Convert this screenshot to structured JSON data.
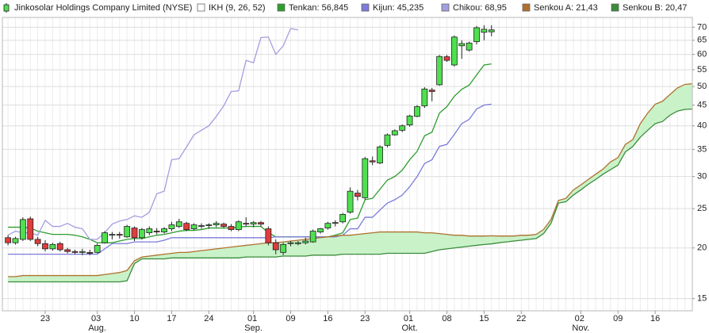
{
  "chart_data": {
    "type": "candlestick",
    "log_scale": true,
    "grid": true,
    "ylim": [
      14,
      74
    ],
    "yticks": [
      15,
      20,
      25,
      30,
      35,
      40,
      45,
      50,
      55,
      60,
      65,
      70
    ],
    "categories": [
      null,
      null,
      null,
      null,
      null,
      "23",
      null,
      null,
      null,
      null,
      null,
      null,
      "03 Aug.",
      null,
      null,
      null,
      null,
      "10",
      null,
      null,
      null,
      null,
      "17",
      null,
      null,
      null,
      null,
      "24",
      null,
      null,
      null,
      null,
      null,
      "01 Sep.",
      null,
      null,
      null,
      null,
      "09",
      null,
      null,
      null,
      null,
      "16",
      null,
      null,
      null,
      null,
      "23",
      null,
      null,
      null,
      null,
      null,
      "01 Okt.",
      null,
      null,
      null,
      null,
      "08",
      null,
      null,
      null,
      null,
      "15",
      null,
      null,
      null,
      null,
      "22",
      null,
      null,
      null,
      null,
      null,
      null,
      null,
      "02 Nov.",
      null,
      null,
      null,
      null,
      "09",
      null,
      null,
      null,
      null,
      "16",
      null,
      null,
      null,
      null,
      null
    ],
    "ohlc": {
      "name": "Jinkosolar Holdings Company Limited (NYSE)",
      "up_color": "#4fe04f",
      "down_color": "#e03c3c",
      "open": [
        21.2,
        20.6,
        21.0,
        23.6,
        21.0,
        20.5,
        19.9,
        20.5,
        19.8,
        19.6,
        19.5,
        19.5,
        19.5,
        20.6,
        21.5,
        21.6,
        21.3,
        22.4,
        21.2,
        21.8,
        22.0,
        21.9,
        22.3,
        22.6,
        23.0,
        22.3,
        22.6,
        22.7,
        22.8,
        22.9,
        22.6,
        22.2,
        23.0,
        22.9,
        23.1,
        22.3,
        20.6,
        19.5,
        20.5,
        20.5,
        20.6,
        20.7,
        21.9,
        22.4,
        23.0,
        23.2,
        24.5,
        27.3,
        26.6,
        32.8,
        32.4,
        35.8,
        38.0,
        39.0,
        40.2,
        42.2,
        44.8,
        49.0,
        50.5,
        59.2,
        56.5,
        63.0,
        61.5,
        64.5,
        68.0,
        68.2,
        null,
        null,
        null,
        null,
        null,
        null,
        null,
        null,
        null,
        null,
        null,
        null,
        null,
        null,
        null,
        null,
        null,
        null,
        null,
        null,
        null,
        null,
        null,
        null,
        null,
        null,
        null
      ],
      "high": [
        21.5,
        21.3,
        23.8,
        23.9,
        21.3,
        20.9,
        20.6,
        20.7,
        20.0,
        19.8,
        19.9,
        19.8,
        20.5,
        22.0,
        21.9,
        21.9,
        22.8,
        22.6,
        22.4,
        22.6,
        22.4,
        22.5,
        23.2,
        23.6,
        23.2,
        23.0,
        23.0,
        23.0,
        23.3,
        23.1,
        22.9,
        23.4,
        23.8,
        23.3,
        23.3,
        22.6,
        21.0,
        20.6,
        20.8,
        20.8,
        21.2,
        22.2,
        22.4,
        23.2,
        23.4,
        24.4,
        28.2,
        27.8,
        33.5,
        33.6,
        35.8,
        38.3,
        39.2,
        40.3,
        42.6,
        45.0,
        49.8,
        49.6,
        59.8,
        59.8,
        66.8,
        65.0,
        64.5,
        70.5,
        70.8,
        70.8,
        null,
        null,
        null,
        null,
        null,
        null,
        null,
        null,
        null,
        null,
        null,
        null,
        null,
        null,
        null,
        null,
        null,
        null,
        null,
        null,
        null,
        null,
        null,
        null,
        null,
        null,
        null
      ],
      "low": [
        20.3,
        20.4,
        20.8,
        20.8,
        20.2,
        19.6,
        19.7,
        19.6,
        19.4,
        19.3,
        19.2,
        19.2,
        19.4,
        20.5,
        21.0,
        21.1,
        21.2,
        20.8,
        21.0,
        21.5,
        21.6,
        21.7,
        22.0,
        22.4,
        22.0,
        22.1,
        22.3,
        22.3,
        22.5,
        22.4,
        22.0,
        22.0,
        22.6,
        22.5,
        22.6,
        20.3,
        19.3,
        19.2,
        20.2,
        20.3,
        20.4,
        20.6,
        21.7,
        22.2,
        22.6,
        23.0,
        24.3,
        26.2,
        26.3,
        32.0,
        32.2,
        35.4,
        37.8,
        38.6,
        39.8,
        42.0,
        44.3,
        46.0,
        50.2,
        57.5,
        56.0,
        58.5,
        61.0,
        63.5,
        65.0,
        66.5,
        null,
        null,
        null,
        null,
        null,
        null,
        null,
        null,
        null,
        null,
        null,
        null,
        null,
        null,
        null,
        null,
        null,
        null,
        null,
        null,
        null,
        null,
        null,
        null,
        null,
        null,
        null
      ],
      "close": [
        20.6,
        21.1,
        23.5,
        21.0,
        20.5,
        19.9,
        20.4,
        19.8,
        19.6,
        19.5,
        19.6,
        19.4,
        20.3,
        21.8,
        21.6,
        21.5,
        22.6,
        21.2,
        22.2,
        22.3,
        21.9,
        22.3,
        22.8,
        23.2,
        22.2,
        22.8,
        22.7,
        22.8,
        23.0,
        22.6,
        22.2,
        23.2,
        22.9,
        23.1,
        22.9,
        20.6,
        19.8,
        20.4,
        20.6,
        20.6,
        20.8,
        22.0,
        22.3,
        23.0,
        23.1,
        24.2,
        27.6,
        26.8,
        33.2,
        32.6,
        35.5,
        38.0,
        38.9,
        40.0,
        42.3,
        44.6,
        49.3,
        48.6,
        59.3,
        58.0,
        66.2,
        63.8,
        64.0,
        69.8,
        69.2,
        68.95,
        null,
        null,
        null,
        null,
        null,
        null,
        null,
        null,
        null,
        null,
        null,
        null,
        null,
        null,
        null,
        null,
        null,
        null,
        null,
        null,
        null,
        null,
        null,
        null,
        null,
        null,
        null
      ]
    },
    "indicator": "IKH (9, 26, 52)",
    "cloud_color": "#c9f2c9",
    "series": [
      {
        "name": "Tenkan: 56,845",
        "color": "#2e9e2e",
        "values": [
          22.5,
          22.5,
          22.5,
          22.4,
          22.0,
          21.8,
          21.6,
          21.6,
          21.6,
          21.5,
          21.3,
          21.0,
          20.6,
          20.6,
          20.6,
          20.8,
          21.0,
          21.1,
          21.1,
          21.3,
          21.5,
          21.6,
          21.8,
          22.0,
          22.1,
          22.1,
          22.2,
          22.4,
          22.4,
          22.4,
          22.4,
          22.5,
          22.6,
          22.6,
          22.6,
          21.8,
          21.3,
          21.3,
          21.3,
          21.3,
          21.3,
          21.3,
          21.3,
          21.3,
          21.5,
          21.8,
          23.5,
          23.7,
          26.3,
          26.5,
          27.9,
          29.4,
          30.0,
          31.1,
          33.0,
          34.6,
          37.8,
          38.6,
          43.0,
          44.6,
          47.3,
          49.2,
          50.4,
          53.4,
          56.5,
          56.845,
          null,
          null,
          null,
          null,
          null,
          null,
          null,
          null,
          null,
          null,
          null,
          null,
          null,
          null,
          null,
          null,
          null,
          null,
          null,
          null,
          null,
          null,
          null,
          null,
          null,
          null,
          null
        ]
      },
      {
        "name": "Kijun: 45,235",
        "color": "#7b7bdc",
        "values": [
          19.3,
          19.3,
          19.3,
          19.3,
          19.3,
          19.3,
          19.3,
          19.3,
          19.3,
          19.3,
          19.3,
          19.3,
          19.3,
          19.9,
          20.5,
          20.5,
          20.5,
          20.7,
          20.7,
          20.7,
          20.7,
          20.9,
          21.2,
          21.2,
          21.2,
          21.2,
          21.2,
          21.2,
          21.2,
          21.2,
          21.2,
          21.2,
          21.2,
          21.2,
          21.2,
          21.2,
          21.3,
          21.3,
          21.3,
          21.3,
          21.3,
          21.3,
          21.3,
          21.3,
          21.3,
          21.5,
          22.3,
          22.3,
          23.8,
          23.8,
          24.8,
          25.8,
          26.3,
          27.0,
          28.3,
          30.0,
          32.3,
          33.0,
          35.6,
          36.0,
          38.1,
          40.5,
          41.5,
          44.0,
          45.0,
          45.235,
          null,
          null,
          null,
          null,
          null,
          null,
          null,
          null,
          null,
          null,
          null,
          null,
          null,
          null,
          null,
          null,
          null,
          null,
          null,
          null,
          null,
          null,
          null,
          null,
          null,
          null,
          null
        ]
      },
      {
        "name": "Chikou: 68,95",
        "color": "#a39ee0",
        "values": [
          21.5,
          22.0,
          21.8,
          21.8,
          21.5,
          23.4,
          22.6,
          22.6,
          23.0,
          22.5,
          22.3,
          21.0,
          21.0,
          21.8,
          22.9,
          23.3,
          23.5,
          24.0,
          23.8,
          24.5,
          27.2,
          27.6,
          33.0,
          33.2,
          35.5,
          38.0,
          39.0,
          40.0,
          42.2,
          44.8,
          48.6,
          48.8,
          58.0,
          57.2,
          66.0,
          66.2,
          60.0,
          63.0,
          69.5,
          68.95,
          null,
          null,
          null,
          null,
          null,
          null,
          null,
          null,
          null,
          null,
          null,
          null,
          null,
          null,
          null,
          null,
          null,
          null,
          null,
          null,
          null,
          null,
          null,
          null,
          null,
          null,
          null,
          null,
          null,
          null,
          null,
          null,
          null,
          null,
          null,
          null,
          null,
          null,
          null,
          null,
          null,
          null,
          null,
          null,
          null,
          null,
          null,
          null,
          null,
          null,
          null,
          null,
          null
        ]
      },
      {
        "name": "Senkou A: 21,43",
        "color": "#b0702e",
        "values": [
          17.0,
          17.0,
          17.1,
          17.1,
          17.1,
          17.1,
          17.1,
          17.1,
          17.1,
          17.1,
          17.1,
          17.1,
          17.1,
          17.2,
          17.3,
          17.4,
          17.6,
          18.6,
          19.0,
          19.1,
          19.2,
          19.3,
          19.4,
          19.5,
          19.5,
          19.6,
          19.7,
          19.8,
          19.9,
          20.0,
          20.1,
          20.2,
          20.3,
          20.4,
          20.5,
          20.6,
          20.6,
          20.7,
          20.8,
          20.9,
          21.0,
          21.1,
          21.2,
          21.3,
          21.4,
          21.5,
          21.5,
          21.6,
          21.7,
          21.8,
          21.9,
          21.9,
          21.9,
          21.9,
          21.9,
          21.9,
          21.8,
          21.8,
          21.7,
          21.6,
          21.5,
          21.5,
          21.4,
          21.4,
          21.4,
          21.43,
          21.4,
          21.4,
          21.4,
          21.5,
          21.5,
          21.6,
          22.2,
          23.5,
          26.2,
          26.5,
          27.8,
          28.6,
          29.5,
          30.4,
          31.3,
          32.6,
          33.4,
          36.0,
          37.0,
          40.5,
          43.0,
          45.2,
          46.0,
          47.8,
          49.6,
          50.6,
          50.8
        ]
      },
      {
        "name": "Senkou B: 20,47",
        "color": "#3a8c3a",
        "values": [
          16.5,
          16.5,
          16.5,
          16.5,
          16.5,
          16.5,
          16.5,
          16.5,
          16.5,
          16.5,
          16.5,
          16.5,
          16.5,
          16.5,
          16.5,
          16.5,
          16.6,
          18.3,
          18.8,
          18.8,
          18.8,
          18.8,
          18.9,
          18.9,
          18.9,
          18.9,
          18.9,
          18.9,
          18.9,
          18.9,
          18.9,
          18.9,
          19.0,
          19.0,
          19.0,
          19.0,
          19.0,
          19.1,
          19.1,
          19.1,
          19.1,
          19.2,
          19.2,
          19.2,
          19.2,
          19.3,
          19.3,
          19.3,
          19.3,
          19.3,
          19.3,
          19.4,
          19.4,
          19.4,
          19.4,
          19.4,
          19.4,
          19.6,
          19.8,
          19.9,
          20.0,
          20.1,
          20.2,
          20.3,
          20.4,
          20.47,
          20.6,
          20.7,
          20.8,
          20.9,
          21.0,
          21.1,
          21.7,
          23.0,
          25.8,
          26.0,
          27.0,
          27.8,
          28.7,
          29.5,
          30.4,
          31.2,
          32.0,
          34.5,
          35.6,
          37.5,
          39.0,
          40.5,
          41.0,
          42.5,
          43.5,
          43.9,
          44.0
        ]
      }
    ]
  }
}
